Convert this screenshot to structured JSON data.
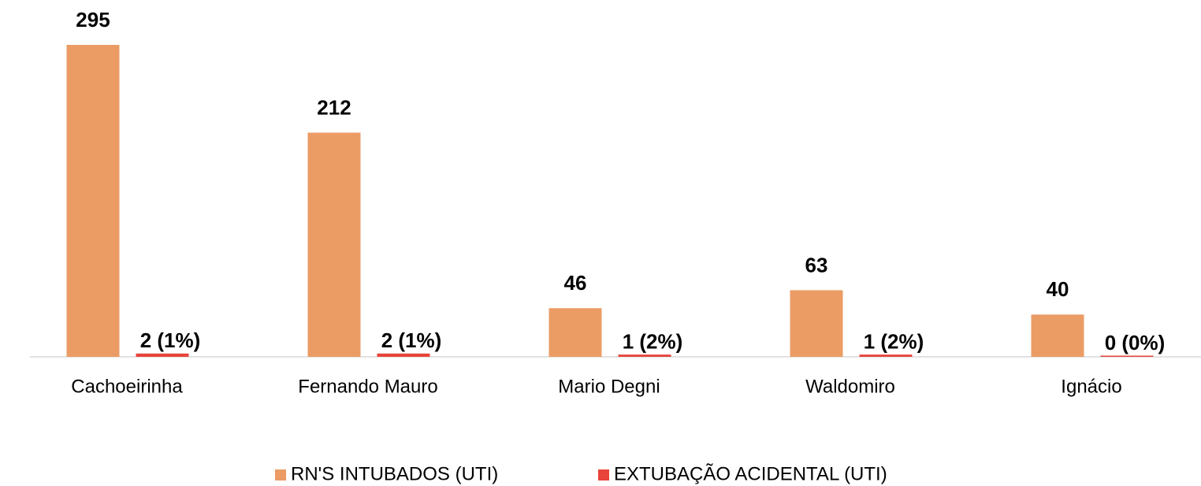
{
  "chart_data": {
    "type": "bar",
    "categories": [
      "Cachoeirinha",
      "Fernando Mauro",
      "Mario Degni",
      "Waldomiro",
      "Ignácio"
    ],
    "series": [
      {
        "name": "RN'S INTUBADOS (UTI)",
        "color": "#eb9c64",
        "values": [
          295,
          212,
          46,
          63,
          40
        ]
      },
      {
        "name": "EXTUBAÇÃO ACIDENTAL (UTI)",
        "color": "#e8443a",
        "values": [
          2,
          2,
          1,
          1,
          0
        ],
        "value_labels": [
          "2 (1%)",
          "2 (1%)",
          "1 (2%)",
          "1 (2%)",
          "0 (0%)"
        ]
      }
    ],
    "legend": "bottom"
  }
}
